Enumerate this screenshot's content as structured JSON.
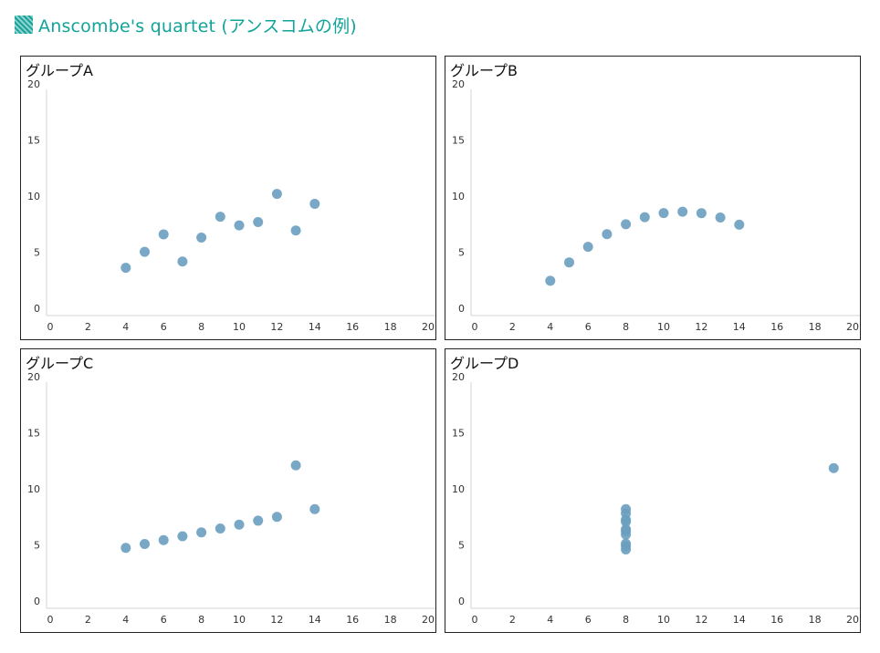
{
  "page": {
    "title": "Anscombe's quartet (アンスコムの例)",
    "accent_color": "#12a39a",
    "marker_icon": "hatched-square-icon"
  },
  "chart_data": [
    {
      "type": "scatter",
      "title": "グループA",
      "xlim": [
        0,
        20
      ],
      "ylim": [
        0,
        20
      ],
      "xticks": [
        0,
        2,
        4,
        6,
        8,
        10,
        12,
        14,
        16,
        18,
        20
      ],
      "yticks": [
        0,
        5,
        10,
        15,
        20
      ],
      "grid": false,
      "color": "#6a9ec0",
      "points": [
        {
          "x": 4,
          "y": 4.26
        },
        {
          "x": 5,
          "y": 5.68
        },
        {
          "x": 6,
          "y": 7.24
        },
        {
          "x": 7,
          "y": 4.82
        },
        {
          "x": 8,
          "y": 6.95
        },
        {
          "x": 9,
          "y": 8.81
        },
        {
          "x": 10,
          "y": 8.04
        },
        {
          "x": 11,
          "y": 8.33
        },
        {
          "x": 12,
          "y": 10.84
        },
        {
          "x": 13,
          "y": 7.58
        },
        {
          "x": 14,
          "y": 9.96
        }
      ]
    },
    {
      "type": "scatter",
      "title": "グループB",
      "xlim": [
        0,
        20
      ],
      "ylim": [
        0,
        20
      ],
      "xticks": [
        0,
        2,
        4,
        6,
        8,
        10,
        12,
        14,
        16,
        18,
        20
      ],
      "yticks": [
        0,
        5,
        10,
        15,
        20
      ],
      "grid": false,
      "color": "#6a9ec0",
      "points": [
        {
          "x": 4,
          "y": 3.1
        },
        {
          "x": 5,
          "y": 4.74
        },
        {
          "x": 6,
          "y": 6.13
        },
        {
          "x": 7,
          "y": 7.26
        },
        {
          "x": 8,
          "y": 8.14
        },
        {
          "x": 9,
          "y": 8.77
        },
        {
          "x": 10,
          "y": 9.14
        },
        {
          "x": 11,
          "y": 9.26
        },
        {
          "x": 12,
          "y": 9.13
        },
        {
          "x": 13,
          "y": 8.74
        },
        {
          "x": 14,
          "y": 8.1
        }
      ]
    },
    {
      "type": "scatter",
      "title": "グループC",
      "xlim": [
        0,
        20
      ],
      "ylim": [
        0,
        20
      ],
      "xticks": [
        0,
        2,
        4,
        6,
        8,
        10,
        12,
        14,
        16,
        18,
        20
      ],
      "yticks": [
        0,
        5,
        10,
        15,
        20
      ],
      "grid": false,
      "color": "#6a9ec0",
      "points": [
        {
          "x": 4,
          "y": 5.39
        },
        {
          "x": 5,
          "y": 5.73
        },
        {
          "x": 6,
          "y": 6.08
        },
        {
          "x": 7,
          "y": 6.42
        },
        {
          "x": 8,
          "y": 6.77
        },
        {
          "x": 9,
          "y": 7.11
        },
        {
          "x": 10,
          "y": 7.46
        },
        {
          "x": 11,
          "y": 7.81
        },
        {
          "x": 12,
          "y": 8.15
        },
        {
          "x": 13,
          "y": 12.74
        },
        {
          "x": 14,
          "y": 8.84
        }
      ]
    },
    {
      "type": "scatter",
      "title": "グループD",
      "xlim": [
        0,
        20
      ],
      "ylim": [
        0,
        20
      ],
      "xticks": [
        0,
        2,
        4,
        6,
        8,
        10,
        12,
        14,
        16,
        18,
        20
      ],
      "yticks": [
        0,
        5,
        10,
        15,
        20
      ],
      "grid": false,
      "color": "#6a9ec0",
      "points": [
        {
          "x": 8,
          "y": 6.58
        },
        {
          "x": 8,
          "y": 5.76
        },
        {
          "x": 8,
          "y": 7.71
        },
        {
          "x": 8,
          "y": 8.84
        },
        {
          "x": 8,
          "y": 8.47
        },
        {
          "x": 8,
          "y": 7.04
        },
        {
          "x": 8,
          "y": 5.25
        },
        {
          "x": 19,
          "y": 12.5
        },
        {
          "x": 8,
          "y": 5.56
        },
        {
          "x": 8,
          "y": 7.91
        },
        {
          "x": 8,
          "y": 6.89
        }
      ]
    }
  ]
}
